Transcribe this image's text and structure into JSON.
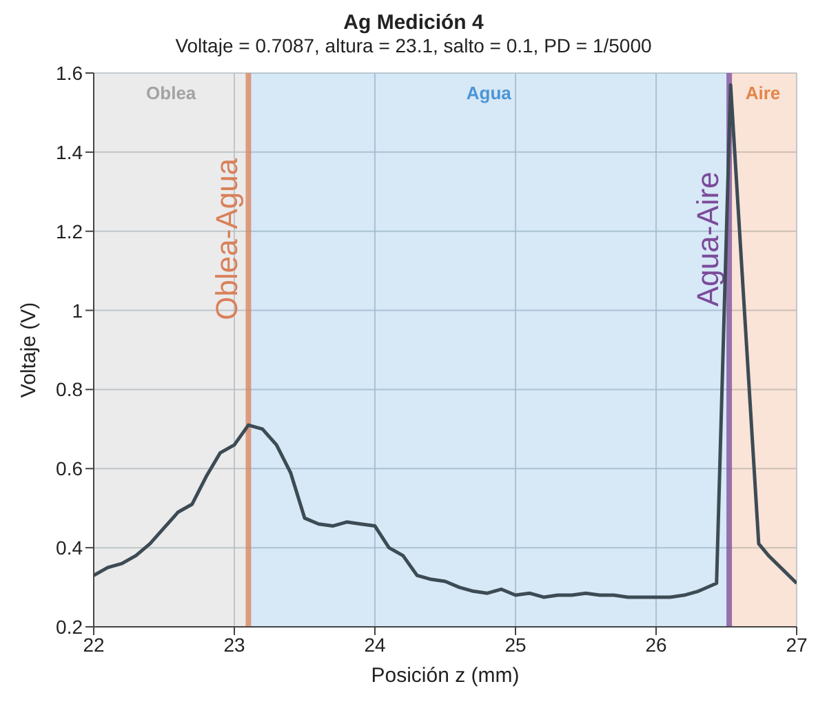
{
  "chart_data": {
    "type": "line",
    "title": "Ag Medición 4",
    "subtitle": "Voltaje = 0.7087, altura = 23.1, salto = 0.1, PD = 1/5000",
    "xlabel": "Posición z (mm)",
    "ylabel": "Voltaje (V)",
    "x": [
      22.0,
      22.1,
      22.2,
      22.3,
      22.4,
      22.5,
      22.6,
      22.7,
      22.8,
      22.9,
      23.0,
      23.1,
      23.2,
      23.3,
      23.4,
      23.5,
      23.6,
      23.7,
      23.8,
      23.9,
      24.0,
      24.1,
      24.2,
      24.3,
      24.4,
      24.5,
      24.6,
      24.7,
      24.8,
      24.9,
      25.0,
      25.1,
      25.2,
      25.3,
      25.4,
      25.5,
      25.6,
      25.7,
      25.8,
      25.9,
      26.0,
      26.1,
      26.2,
      26.3,
      26.43,
      26.53,
      26.73,
      26.8,
      27.0
    ],
    "series": [
      {
        "color": "#3d4b55",
        "values": [
          0.33,
          0.35,
          0.36,
          0.38,
          0.41,
          0.45,
          0.49,
          0.51,
          0.58,
          0.64,
          0.66,
          0.71,
          0.7,
          0.66,
          0.59,
          0.475,
          0.46,
          0.455,
          0.465,
          0.46,
          0.455,
          0.4,
          0.38,
          0.33,
          0.32,
          0.315,
          0.3,
          0.29,
          0.285,
          0.295,
          0.28,
          0.285,
          0.275,
          0.28,
          0.28,
          0.285,
          0.28,
          0.28,
          0.275,
          0.275,
          0.275,
          0.275,
          0.28,
          0.29,
          0.31,
          1.57,
          0.41,
          0.38,
          0.31
        ]
      }
    ],
    "xlim": [
      22,
      27
    ],
    "ylim": [
      0.2,
      1.6
    ],
    "xticks": [
      22,
      23,
      24,
      25,
      26,
      27
    ],
    "yticks": [
      0.2,
      0.4,
      0.6,
      0.8,
      1,
      1.2,
      1.4,
      1.6
    ],
    "grid": true,
    "marker": "none",
    "line_style": "solid",
    "bands": [
      {
        "axis": "x",
        "from": 22,
        "to": 23.1,
        "label": "Oblea",
        "color": "#a3a3a3"
      },
      {
        "axis": "x",
        "from": 23.1,
        "to": 26.52,
        "label": "Agua",
        "color": "#4a95d6"
      },
      {
        "axis": "x",
        "from": 26.52,
        "to": 27,
        "label": "Aire",
        "color": "#e3854a"
      }
    ],
    "ref_lines": [
      {
        "axis": "x",
        "value": 23.1,
        "label": "Oblea-Agua",
        "color": "#d9805a",
        "line_style": "solid"
      },
      {
        "axis": "x",
        "value": 26.52,
        "label": "Agua-Aire",
        "color": "#7b4a9a",
        "line_style": "solid"
      }
    ]
  }
}
